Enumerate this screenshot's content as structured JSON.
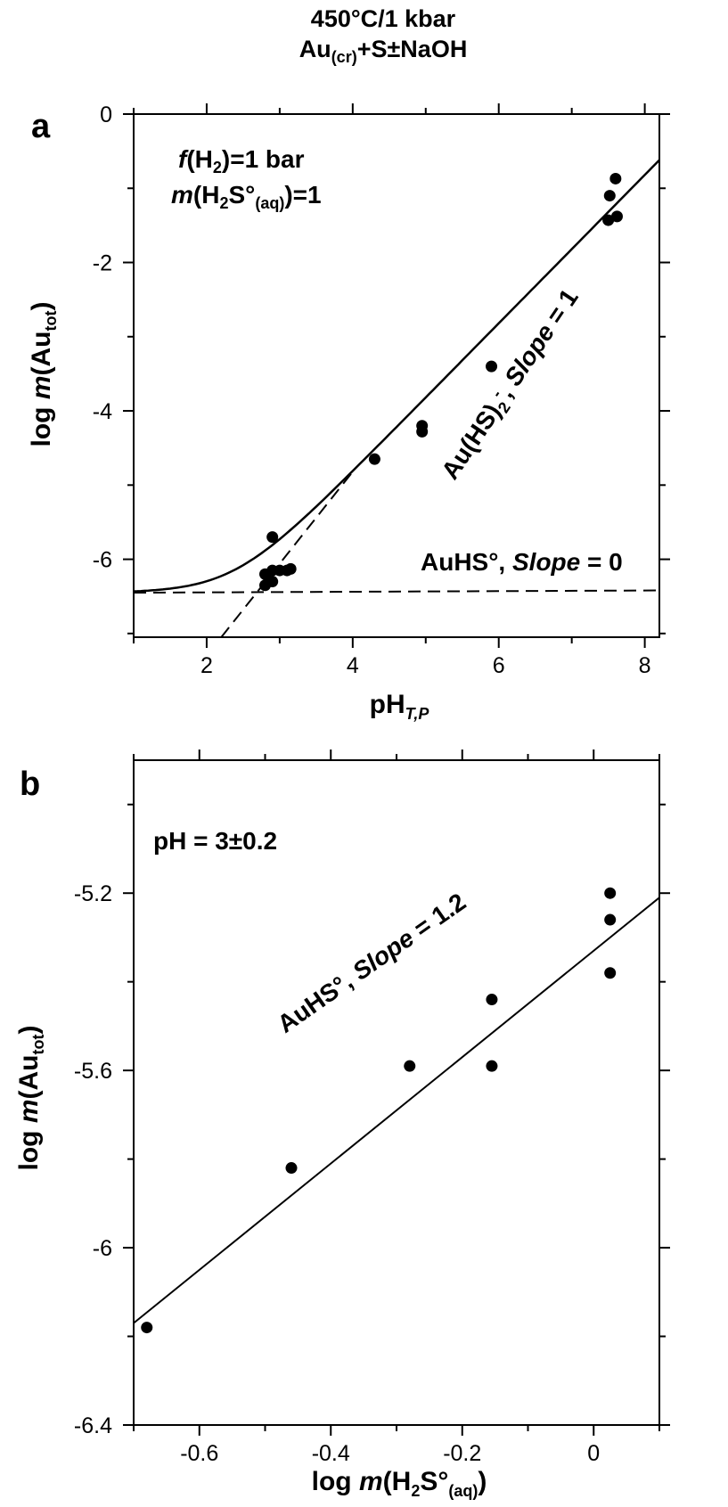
{
  "title": {
    "line1": "450°C/1 kbar",
    "line2_prefix": "Au",
    "line2_sub": "(cr)",
    "line2_suffix": "+S±NaOH"
  },
  "chart_data": [
    {
      "panel": "a",
      "type": "scatter",
      "xlabel": {
        "main": "pH",
        "sub": "T,P"
      },
      "ylabel": {
        "prefix": "log ",
        "italic": "m",
        "main": "(Au",
        "sub": "tot",
        "close": ")"
      },
      "xlim": [
        1,
        8.2
      ],
      "ylim": [
        -7.05,
        0
      ],
      "xticks": [
        2,
        4,
        6,
        8
      ],
      "yticks": [
        0,
        -2,
        -4,
        -6
      ],
      "annotations": {
        "fh2": {
          "italic": "f",
          "rest1": "(H",
          "sub": "2",
          "rest2": ")=1 bar"
        },
        "mh2s": {
          "italic": "m",
          "rest1": "(H",
          "sub1": "2",
          "rest2": "S°",
          "sub2": "(aq)",
          "rest3": ")=1"
        },
        "auhs2": {
          "text1": "Au(HS)",
          "sub": "2",
          "sup": "-",
          "text2": ", ",
          "italic": "Slope",
          "text3": " = 1"
        },
        "auhs": {
          "text1": "AuHS°, ",
          "italic": "Slope",
          "text2": " = 0"
        }
      },
      "points": [
        {
          "x": 2.8,
          "y": -6.35
        },
        {
          "x": 2.85,
          "y": -6.3
        },
        {
          "x": 2.8,
          "y": -6.2
        },
        {
          "x": 2.9,
          "y": -6.3
        },
        {
          "x": 2.9,
          "y": -6.15
        },
        {
          "x": 3.0,
          "y": -6.15
        },
        {
          "x": 3.1,
          "y": -6.15
        },
        {
          "x": 3.15,
          "y": -6.13
        },
        {
          "x": 2.9,
          "y": -5.7
        },
        {
          "x": 4.3,
          "y": -4.65
        },
        {
          "x": 4.95,
          "y": -4.2
        },
        {
          "x": 4.95,
          "y": -4.28
        },
        {
          "x": 5.9,
          "y": -3.4
        },
        {
          "x": 7.5,
          "y": -1.43
        },
        {
          "x": 7.52,
          "y": -1.1
        },
        {
          "x": 7.6,
          "y": -0.87
        },
        {
          "x": 7.62,
          "y": -1.38
        }
      ],
      "lines": {
        "solid_curve": "log10(10^-6.45 + 10^(x - 8.82))",
        "dashed_slope1": {
          "from": [
            2.2,
            -7.05
          ],
          "to": [
            4.0,
            -4.82
          ]
        },
        "dashed_slope0": {
          "from": [
            1.0,
            -6.45
          ],
          "to": [
            8.2,
            -6.42
          ]
        }
      }
    },
    {
      "panel": "b",
      "type": "scatter",
      "xlabel": {
        "prefix": "log ",
        "italic": "m",
        "rest1": "(H",
        "sub1": "2",
        "rest2": "S°",
        "sub2": "(aq)",
        "rest3": ")"
      },
      "ylabel": {
        "prefix": "log ",
        "italic": "m",
        "main": "(Au",
        "sub": "tot",
        "close": ")"
      },
      "xlim": [
        -0.7,
        0.1
      ],
      "ylim": [
        -6.4,
        -4.9
      ],
      "xticks": [
        -0.6,
        -0.4,
        -0.2,
        0
      ],
      "xtick_labels": [
        "-0.6",
        "-0.4",
        "-0.2",
        "0"
      ],
      "yticks": [
        -5.2,
        -5.6,
        -6,
        -6.4
      ],
      "ytick_labels": [
        "-5.2",
        "-5.6",
        "-6",
        "-6.4"
      ],
      "annotations": {
        "ph": "pH = 3±0.2",
        "slope": {
          "text1": "AuHS°, ",
          "italic": "Slope",
          "text2": " = 1.2"
        }
      },
      "points": [
        {
          "x": -0.68,
          "y": -6.18
        },
        {
          "x": -0.46,
          "y": -5.82
        },
        {
          "x": -0.28,
          "y": -5.59
        },
        {
          "x": -0.155,
          "y": -5.44
        },
        {
          "x": -0.155,
          "y": -5.59
        },
        {
          "x": 0.025,
          "y": -5.2
        },
        {
          "x": 0.025,
          "y": -5.26
        },
        {
          "x": 0.025,
          "y": -5.38
        }
      ],
      "fit_line": {
        "from": [
          -0.7,
          -6.17
        ],
        "to": [
          0.1,
          -5.21
        ]
      }
    }
  ]
}
